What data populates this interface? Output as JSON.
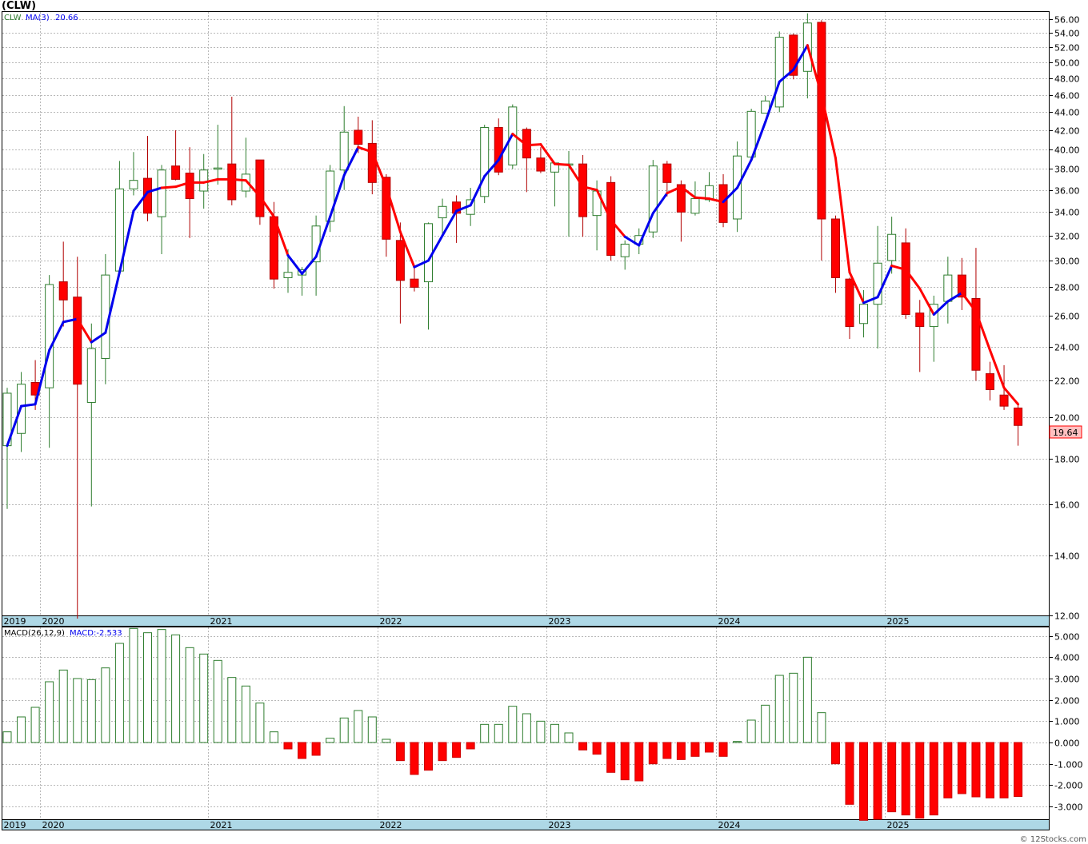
{
  "title": "(CLW)",
  "price_panel": {
    "legend_symbol": "CLW",
    "legend_ma": "MA(3)",
    "legend_ma_value": "20.66",
    "last_price_label": "19.64"
  },
  "macd_panel": {
    "legend_macd": "MACD(26,12,9)",
    "legend_value": "MACD:-2.533"
  },
  "watermark": "© 12Stocks.com",
  "colors": {
    "up_candle": "#2e7d2e",
    "down_candle": "#ff0000",
    "ma_up": "#0000ee",
    "ma_down": "#ff0000",
    "axis_band": "#aed8e6",
    "last_price_bg": "#ffc0c0"
  },
  "chart_data": [
    {
      "type": "candlestick",
      "series_name": "CLW",
      "scale": "log",
      "ylim": [
        12,
        57
      ],
      "yticks": [
        12,
        14,
        16,
        18,
        20,
        22,
        24,
        26,
        28,
        30,
        32,
        34,
        36,
        38,
        40,
        42,
        44,
        46,
        48,
        50,
        52,
        54,
        56
      ],
      "x_year_labels": [
        "2019",
        "2020",
        "2021",
        "2022",
        "2023",
        "2024",
        "2025"
      ],
      "x_year_start_index": [
        0,
        3,
        15,
        27,
        39,
        51,
        63
      ],
      "period": "monthly",
      "candles": [
        {
          "o": 18.6,
          "h": 21.6,
          "l": 15.8,
          "c": 21.3
        },
        {
          "o": 19.2,
          "h": 22.5,
          "l": 18.3,
          "c": 21.8
        },
        {
          "o": 21.9,
          "h": 23.2,
          "l": 20.4,
          "c": 21.2
        },
        {
          "o": 21.6,
          "h": 28.9,
          "l": 18.5,
          "c": 28.2
        },
        {
          "o": 28.4,
          "h": 31.5,
          "l": 25.3,
          "c": 27.1
        },
        {
          "o": 27.3,
          "h": 30.3,
          "l": 11.9,
          "c": 21.8
        },
        {
          "o": 20.8,
          "h": 25.5,
          "l": 15.9,
          "c": 23.9
        },
        {
          "o": 23.3,
          "h": 30.5,
          "l": 21.8,
          "c": 28.9
        },
        {
          "o": 29.2,
          "h": 38.8,
          "l": 29.0,
          "c": 36.1
        },
        {
          "o": 36.1,
          "h": 39.7,
          "l": 35.5,
          "c": 36.9
        },
        {
          "o": 37.1,
          "h": 41.4,
          "l": 33.2,
          "c": 33.9
        },
        {
          "o": 33.6,
          "h": 38.4,
          "l": 30.5,
          "c": 37.9
        },
        {
          "o": 38.3,
          "h": 42.0,
          "l": 36.9,
          "c": 37.0
        },
        {
          "o": 37.6,
          "h": 40.2,
          "l": 31.8,
          "c": 35.2
        },
        {
          "o": 35.9,
          "h": 39.5,
          "l": 34.3,
          "c": 37.9
        },
        {
          "o": 38.1,
          "h": 42.6,
          "l": 36.5,
          "c": 38.1
        },
        {
          "o": 38.5,
          "h": 45.8,
          "l": 34.6,
          "c": 35.1
        },
        {
          "o": 35.9,
          "h": 41.2,
          "l": 35.3,
          "c": 37.5
        },
        {
          "o": 38.9,
          "h": 38.9,
          "l": 32.9,
          "c": 33.6
        },
        {
          "o": 33.6,
          "h": 34.9,
          "l": 27.9,
          "c": 28.6
        },
        {
          "o": 28.7,
          "h": 30.9,
          "l": 27.6,
          "c": 29.1
        },
        {
          "o": 28.9,
          "h": 29.5,
          "l": 27.4,
          "c": 29.3
        },
        {
          "o": 29.9,
          "h": 33.7,
          "l": 27.4,
          "c": 32.8
        },
        {
          "o": 33.2,
          "h": 38.4,
          "l": 32.3,
          "c": 37.8
        },
        {
          "o": 37.9,
          "h": 44.7,
          "l": 36.0,
          "c": 41.8
        },
        {
          "o": 42.0,
          "h": 43.5,
          "l": 39.6,
          "c": 40.5
        },
        {
          "o": 40.6,
          "h": 43.1,
          "l": 35.6,
          "c": 36.7
        },
        {
          "o": 37.2,
          "h": 37.5,
          "l": 30.3,
          "c": 31.7
        },
        {
          "o": 31.6,
          "h": 33.1,
          "l": 25.5,
          "c": 28.5
        },
        {
          "o": 28.6,
          "h": 29.5,
          "l": 27.7,
          "c": 28.0
        },
        {
          "o": 28.4,
          "h": 33.1,
          "l": 25.1,
          "c": 33.0
        },
        {
          "o": 33.5,
          "h": 35.2,
          "l": 32.0,
          "c": 34.5
        },
        {
          "o": 34.9,
          "h": 35.5,
          "l": 31.4,
          "c": 33.9
        },
        {
          "o": 33.8,
          "h": 36.2,
          "l": 32.8,
          "c": 35.1
        },
        {
          "o": 35.4,
          "h": 42.6,
          "l": 34.8,
          "c": 42.3
        },
        {
          "o": 42.3,
          "h": 43.3,
          "l": 37.4,
          "c": 37.7
        },
        {
          "o": 38.4,
          "h": 44.9,
          "l": 38.0,
          "c": 44.6
        },
        {
          "o": 42.1,
          "h": 42.3,
          "l": 35.8,
          "c": 39.1
        },
        {
          "o": 39.1,
          "h": 40.2,
          "l": 37.6,
          "c": 37.8
        },
        {
          "o": 37.7,
          "h": 38.6,
          "l": 34.5,
          "c": 38.6
        },
        {
          "o": 38.5,
          "h": 39.8,
          "l": 31.9,
          "c": 38.5
        },
        {
          "o": 38.5,
          "h": 39.4,
          "l": 31.9,
          "c": 33.6
        },
        {
          "o": 33.7,
          "h": 36.9,
          "l": 30.8,
          "c": 35.9
        },
        {
          "o": 36.7,
          "h": 37.3,
          "l": 30.0,
          "c": 30.4
        },
        {
          "o": 30.3,
          "h": 31.6,
          "l": 29.3,
          "c": 31.3
        },
        {
          "o": 31.3,
          "h": 32.6,
          "l": 30.5,
          "c": 32.0
        },
        {
          "o": 32.3,
          "h": 38.9,
          "l": 31.8,
          "c": 38.3
        },
        {
          "o": 38.5,
          "h": 38.8,
          "l": 35.4,
          "c": 36.7
        },
        {
          "o": 36.5,
          "h": 36.9,
          "l": 31.5,
          "c": 34.0
        },
        {
          "o": 33.9,
          "h": 36.8,
          "l": 33.7,
          "c": 35.2
        },
        {
          "o": 35.1,
          "h": 37.7,
          "l": 34.9,
          "c": 36.4
        },
        {
          "o": 36.5,
          "h": 37.5,
          "l": 32.7,
          "c": 33.1
        },
        {
          "o": 33.4,
          "h": 40.8,
          "l": 32.3,
          "c": 39.3
        },
        {
          "o": 39.2,
          "h": 44.4,
          "l": 38.9,
          "c": 44.1
        },
        {
          "o": 43.9,
          "h": 45.9,
          "l": 44.0,
          "c": 45.3
        },
        {
          "o": 44.6,
          "h": 54.2,
          "l": 44.0,
          "c": 53.4
        },
        {
          "o": 53.7,
          "h": 53.9,
          "l": 47.9,
          "c": 48.4
        },
        {
          "o": 48.9,
          "h": 56.8,
          "l": 45.6,
          "c": 55.4
        },
        {
          "o": 55.5,
          "h": 55.8,
          "l": 30.0,
          "c": 33.4
        },
        {
          "o": 33.4,
          "h": 33.7,
          "l": 27.6,
          "c": 28.7
        },
        {
          "o": 28.6,
          "h": 28.7,
          "l": 24.5,
          "c": 25.3
        },
        {
          "o": 25.5,
          "h": 27.8,
          "l": 24.6,
          "c": 26.8
        },
        {
          "o": 26.8,
          "h": 32.8,
          "l": 23.9,
          "c": 29.8
        },
        {
          "o": 30.0,
          "h": 33.6,
          "l": 29.0,
          "c": 32.1
        },
        {
          "o": 31.4,
          "h": 32.6,
          "l": 25.8,
          "c": 26.1
        },
        {
          "o": 26.2,
          "h": 27.1,
          "l": 22.5,
          "c": 25.3
        },
        {
          "o": 25.3,
          "h": 27.4,
          "l": 23.1,
          "c": 26.8
        },
        {
          "o": 27.0,
          "h": 30.3,
          "l": 25.5,
          "c": 28.9
        },
        {
          "o": 28.9,
          "h": 30.2,
          "l": 26.4,
          "c": 27.3
        },
        {
          "o": 27.2,
          "h": 31.0,
          "l": 22.0,
          "c": 22.6
        },
        {
          "o": 22.4,
          "h": 23.1,
          "l": 20.9,
          "c": 21.5
        },
        {
          "o": 21.2,
          "h": 22.9,
          "l": 20.4,
          "c": 20.6
        },
        {
          "o": 20.5,
          "h": 20.8,
          "l": 18.6,
          "c": 19.6
        }
      ],
      "ma3": [
        18.6,
        20.6,
        20.7,
        23.8,
        25.6,
        25.8,
        24.3,
        24.9,
        29.1,
        34.1,
        35.8,
        36.2,
        36.3,
        36.7,
        36.7,
        37.0,
        37.0,
        36.9,
        35.4,
        33.6,
        30.4,
        29.0,
        30.3,
        33.6,
        37.4,
        40.2,
        39.7,
        36.3,
        32.3,
        29.5,
        30.0,
        32.0,
        34.1,
        34.6,
        37.3,
        38.9,
        41.6,
        40.4,
        40.5,
        38.5,
        38.4,
        36.3,
        36.0,
        33.3,
        31.9,
        31.2,
        33.9,
        35.7,
        36.3,
        35.3,
        35.2,
        34.9,
        36.2,
        38.9,
        42.9,
        47.6,
        49.1,
        52.3,
        46.0,
        39.1,
        29.1,
        26.9,
        27.3,
        29.6,
        29.3,
        27.9,
        26.1,
        27.0,
        27.6,
        26.3,
        23.8,
        21.6,
        20.7
      ],
      "ma3_up": [
        true,
        true,
        true,
        true,
        true,
        true,
        false,
        true,
        true,
        true,
        true,
        true,
        false,
        false,
        false,
        false,
        false,
        false,
        false,
        false,
        false,
        true,
        true,
        true,
        true,
        true,
        false,
        false,
        false,
        false,
        true,
        true,
        true,
        true,
        true,
        true,
        true,
        false,
        false,
        false,
        false,
        false,
        false,
        false,
        false,
        true,
        true,
        true,
        false,
        false,
        false,
        false,
        true,
        true,
        true,
        true,
        true,
        true,
        false,
        false,
        false,
        false,
        true,
        true,
        false,
        false,
        false,
        true,
        true,
        false,
        false,
        false,
        false
      ]
    },
    {
      "type": "bar",
      "series_name": "MACD",
      "ylim": [
        -3.6,
        5.4
      ],
      "yticks": [
        -3,
        -2,
        -1,
        0,
        1,
        2,
        3,
        4,
        5
      ],
      "values": [
        0.5,
        1.2,
        1.65,
        2.85,
        3.4,
        3.0,
        2.95,
        3.5,
        4.65,
        5.35,
        5.15,
        5.3,
        5.05,
        4.45,
        4.15,
        3.85,
        3.05,
        2.65,
        1.85,
        0.5,
        -0.3,
        -0.75,
        -0.6,
        0.2,
        1.15,
        1.5,
        1.2,
        0.15,
        -0.85,
        -1.5,
        -1.3,
        -0.85,
        -0.7,
        -0.3,
        0.85,
        0.85,
        1.7,
        1.35,
        1.0,
        0.85,
        0.45,
        -0.35,
        -0.55,
        -1.4,
        -1.75,
        -1.8,
        -1.0,
        -0.75,
        -0.8,
        -0.65,
        -0.45,
        -0.65,
        0.05,
        1.05,
        1.75,
        3.15,
        3.25,
        4.0,
        1.4,
        -1.0,
        -2.9,
        -3.65,
        -3.6,
        -3.25,
        -3.4,
        -3.55,
        -3.4,
        -2.6,
        -2.4,
        -2.55,
        -2.6,
        -2.6,
        -2.533
      ]
    }
  ]
}
